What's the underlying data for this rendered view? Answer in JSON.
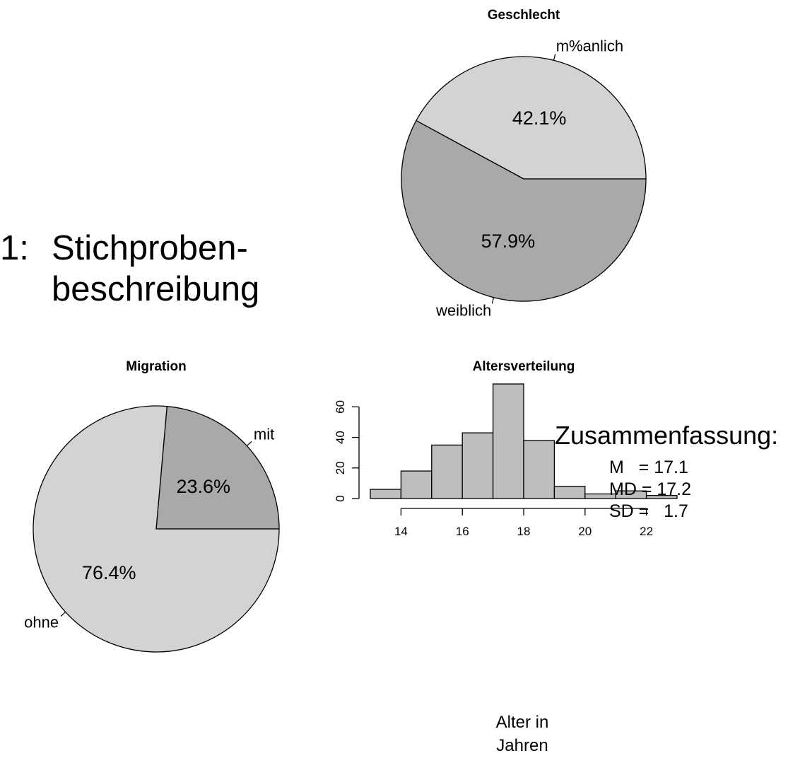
{
  "slide": {
    "number": "1:",
    "title_line1": "Stichproben-",
    "title_line2": "beschreibung"
  },
  "summary": {
    "heading": "Zusammenfassung:",
    "stats": [
      "M   = 17.1",
      "MD = 17.2",
      "SD =   1.7"
    ]
  },
  "colors": {
    "light": "#d3d3d3",
    "dark": "#a9a9a9",
    "bar": "#bebebe",
    "stroke": "#000000"
  },
  "chart_data": [
    {
      "type": "pie",
      "title": "Geschlecht",
      "labels": [
        "m%anlich",
        "weiblich"
      ],
      "values": [
        42.1,
        57.9
      ],
      "value_labels": [
        "42.1%",
        "57.9%"
      ],
      "colors": [
        "#d3d3d3",
        "#a9a9a9"
      ]
    },
    {
      "type": "pie",
      "title": "Migration",
      "labels": [
        "mit",
        "ohne"
      ],
      "values": [
        23.6,
        76.4
      ],
      "value_labels": [
        "23.6%",
        "76.4%"
      ],
      "colors": [
        "#a9a9a9",
        "#d3d3d3"
      ]
    },
    {
      "type": "bar",
      "subtype": "histogram",
      "title": "Altersverteilung",
      "xlabel": "Alter in\nJahren",
      "ylabel": "",
      "bins": [
        [
          13,
          14
        ],
        [
          14,
          15
        ],
        [
          15,
          16
        ],
        [
          16,
          17
        ],
        [
          17,
          18
        ],
        [
          18,
          19
        ],
        [
          19,
          20
        ],
        [
          20,
          21
        ],
        [
          21,
          22
        ],
        [
          22,
          23
        ]
      ],
      "values": [
        6,
        18,
        35,
        43,
        75,
        38,
        8,
        3,
        5,
        2
      ],
      "xlim": [
        13,
        23
      ],
      "ylim": [
        0,
        75
      ],
      "x_ticks": [
        14,
        16,
        18,
        20,
        22
      ],
      "y_ticks": [
        0,
        20,
        40,
        60
      ],
      "grid": false
    }
  ]
}
